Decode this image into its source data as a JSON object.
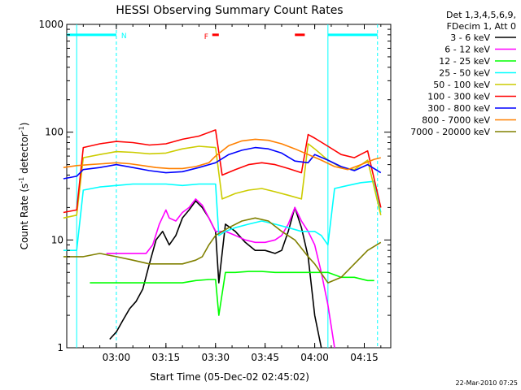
{
  "chart_data": {
    "type": "line",
    "title": "HESSI Observing Summary Count Rates",
    "xlabel": "Start Time (05-Dec-02 02:45:02)",
    "ylabel_main": "Count Rate (s",
    "ylabel_sup1": "-1",
    "ylabel_mid": " detector",
    "ylabel_sup2": "-1",
    "ylabel_end": ")",
    "y_scale": "log",
    "ylim": [
      1,
      1000
    ],
    "xlim": [
      "02:45",
      "04:23"
    ],
    "x_ticks": [
      "03:00",
      "03:15",
      "03:30",
      "03:45",
      "04:00",
      "04:15"
    ],
    "y_ticks": [
      "1",
      "10",
      "100",
      "1000"
    ],
    "legend_header": [
      "Det 1,3,4,5,6,9,",
      "FDecim 1, Att 0"
    ],
    "legend_position": "right",
    "timestamp": "22-Mar-2010 07:25",
    "flag_labels": {
      "night": "N",
      "flare": "F"
    },
    "series": [
      {
        "name": "3 - 6 keV",
        "color": "#000000",
        "x": [
          "02:58",
          "03:00",
          "03:02",
          "03:04",
          "03:06",
          "03:08",
          "03:10",
          "03:12",
          "03:14",
          "03:16",
          "03:18",
          "03:20",
          "03:22",
          "03:24",
          "03:26",
          "03:28",
          "03:30",
          "03:31",
          "03:33",
          "03:36",
          "03:39",
          "03:42",
          "03:45",
          "03:48",
          "03:50",
          "03:52",
          "03:54",
          "03:56",
          "03:58",
          "04:00",
          "04:02"
        ],
        "y": [
          1.2,
          1.4,
          1.8,
          2.3,
          2.7,
          3.5,
          6,
          10,
          12,
          9,
          11,
          16,
          19,
          23,
          20,
          16,
          12,
          4,
          14,
          12,
          9.5,
          8,
          8,
          7.5,
          8,
          12,
          20,
          13,
          7,
          2,
          1
        ]
      },
      {
        "name": "6 - 12 keV",
        "color": "#ff00ff",
        "x": [
          "02:57",
          "03:00",
          "03:03",
          "03:06",
          "03:09",
          "03:11",
          "03:13",
          "03:15",
          "03:16",
          "03:18",
          "03:20",
          "03:22",
          "03:24",
          "03:26",
          "03:28",
          "03:30",
          "03:33",
          "03:36",
          "03:39",
          "03:42",
          "03:45",
          "03:48",
          "03:50",
          "03:52",
          "03:54",
          "03:56",
          "03:58",
          "04:00",
          "04:02",
          "04:04",
          "04:06"
        ],
        "y": [
          7.5,
          7.5,
          7.5,
          7.5,
          7.5,
          9,
          14,
          19,
          16,
          15,
          18,
          20,
          24,
          21,
          16,
          12,
          12,
          11,
          10,
          9.5,
          9.5,
          10,
          11,
          14,
          20,
          15,
          12,
          9,
          5,
          2.5,
          1
        ]
      },
      {
        "name": "12 - 25 keV",
        "color": "#00ff00",
        "x": [
          "02:52",
          "02:56",
          "03:00",
          "03:04",
          "03:08",
          "03:12",
          "03:16",
          "03:20",
          "03:24",
          "03:28",
          "03:30",
          "03:31",
          "03:33",
          "03:36",
          "03:40",
          "03:44",
          "03:48",
          "03:52",
          "03:56",
          "04:00",
          "04:04",
          "04:08",
          "04:12",
          "04:16",
          "04:18"
        ],
        "y": [
          4,
          4,
          4,
          4,
          4,
          4,
          4,
          4,
          4.2,
          4.3,
          4.3,
          2,
          5,
          5,
          5.1,
          5.1,
          5,
          5,
          5,
          5,
          5,
          4.5,
          4.5,
          4.2,
          4.2
        ]
      },
      {
        "name": "25 - 50 keV",
        "color": "#00ffff",
        "x": [
          "02:44",
          "02:48",
          "02:50",
          "02:55",
          "03:00",
          "03:05",
          "03:10",
          "03:15",
          "03:20",
          "03:25",
          "03:30",
          "03:31",
          "03:33",
          "03:36",
          "03:40",
          "03:44",
          "03:48",
          "03:52",
          "03:56",
          "04:00",
          "04:02",
          "04:04",
          "04:06",
          "04:10",
          "04:14",
          "04:18",
          "04:20"
        ],
        "y": [
          8,
          8,
          29,
          31,
          32,
          33,
          33,
          33,
          32,
          33,
          33,
          11,
          12,
          13,
          14,
          15,
          14,
          13,
          12,
          12,
          11,
          9,
          30,
          32,
          34,
          35,
          18
        ]
      },
      {
        "name": "50 - 100 keV",
        "color": "#cccc00",
        "x": [
          "02:44",
          "02:48",
          "02:50",
          "02:55",
          "03:00",
          "03:05",
          "03:10",
          "03:15",
          "03:20",
          "03:25",
          "03:30",
          "03:32",
          "03:36",
          "03:40",
          "03:44",
          "03:48",
          "03:52",
          "03:56",
          "03:58",
          "04:00",
          "04:04",
          "04:08",
          "04:12",
          "04:16",
          "04:20"
        ],
        "y": [
          16,
          17,
          58,
          62,
          66,
          65,
          63,
          64,
          70,
          74,
          72,
          24,
          27,
          29,
          30,
          28,
          26,
          24,
          78,
          70,
          55,
          47,
          45,
          55,
          17
        ]
      },
      {
        "name": "100 - 300 keV",
        "color": "#ff0000",
        "x": [
          "02:44",
          "02:48",
          "02:50",
          "02:55",
          "03:00",
          "03:05",
          "03:10",
          "03:15",
          "03:20",
          "03:25",
          "03:30",
          "03:32",
          "03:36",
          "03:40",
          "03:44",
          "03:48",
          "03:52",
          "03:56",
          "03:58",
          "04:00",
          "04:04",
          "04:08",
          "04:12",
          "04:16",
          "04:20"
        ],
        "y": [
          18,
          19,
          72,
          78,
          82,
          80,
          76,
          78,
          86,
          92,
          105,
          40,
          45,
          50,
          52,
          50,
          46,
          42,
          95,
          88,
          74,
          62,
          58,
          67,
          20
        ]
      },
      {
        "name": "300 - 800 keV",
        "color": "#0000ff",
        "x": [
          "02:44",
          "02:48",
          "02:50",
          "02:55",
          "03:00",
          "03:05",
          "03:10",
          "03:15",
          "03:20",
          "03:25",
          "03:30",
          "03:34",
          "03:38",
          "03:42",
          "03:46",
          "03:50",
          "03:54",
          "03:58",
          "04:00",
          "04:04",
          "04:08",
          "04:12",
          "04:16",
          "04:20"
        ],
        "y": [
          37,
          39,
          45,
          47,
          50,
          47,
          44,
          42,
          43,
          47,
          52,
          62,
          68,
          72,
          70,
          64,
          54,
          52,
          62,
          55,
          48,
          44,
          50,
          42
        ]
      },
      {
        "name": "800 - 7000 keV",
        "color": "#ff8000",
        "x": [
          "02:44",
          "02:48",
          "02:52",
          "02:56",
          "03:00",
          "03:04",
          "03:08",
          "03:12",
          "03:16",
          "03:20",
          "03:24",
          "03:28",
          "03:30",
          "03:34",
          "03:38",
          "03:42",
          "03:46",
          "03:50",
          "03:54",
          "03:58",
          "04:02",
          "04:06",
          "04:10",
          "04:14",
          "04:18",
          "04:20"
        ],
        "y": [
          47,
          49,
          50,
          51,
          52,
          51,
          49,
          47,
          46,
          46,
          48,
          52,
          60,
          75,
          83,
          86,
          84,
          78,
          70,
          62,
          55,
          48,
          45,
          50,
          56,
          58
        ]
      },
      {
        "name": "7000 - 20000 keV",
        "color": "#808000",
        "x": [
          "02:44",
          "02:50",
          "02:55",
          "03:00",
          "03:05",
          "03:10",
          "03:15",
          "03:20",
          "03:24",
          "03:26",
          "03:28",
          "03:30",
          "03:34",
          "03:38",
          "03:42",
          "03:46",
          "03:50",
          "03:54",
          "03:58",
          "04:00",
          "04:04",
          "04:08",
          "04:12",
          "04:16",
          "04:20"
        ],
        "y": [
          7,
          7,
          7.5,
          7,
          6.5,
          6,
          6,
          6,
          6.5,
          7,
          9,
          11,
          13,
          15,
          16,
          15,
          12,
          10,
          7,
          6,
          4,
          4.5,
          6,
          8,
          9.5
        ]
      }
    ]
  }
}
